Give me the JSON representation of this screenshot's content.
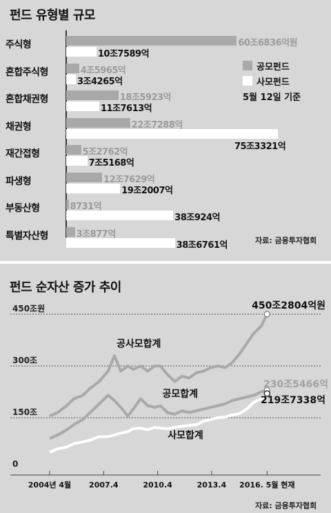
{
  "chart_data": [
    {
      "type": "bar",
      "title": "펀드 유형별 규모",
      "categories": [
        "주식형",
        "혼합주식형",
        "혼합채권형",
        "채권형",
        "재간접형",
        "파생형",
        "부동산형",
        "특별자산형"
      ],
      "series": [
        {
          "name": "공모펀드",
          "color": "#a9a9a9",
          "values": [
            60.6836,
            4.5965,
            18.5923,
            22.7288,
            5.2762,
            12.7629,
            0.8731,
            3.0877
          ],
          "labels": [
            "60조6836억원",
            "4조5965억",
            "18조5923억",
            "22조7288억",
            "5조2762억",
            "12조7629억",
            "8731억",
            "3조877억"
          ]
        },
        {
          "name": "사모펀드",
          "color": "#ffffff",
          "values": [
            10.7589,
            3.4265,
            11.7613,
            75.3321,
            7.5168,
            19.2007,
            38.0924,
            38.6761
          ],
          "labels": [
            "10조7589억",
            "3조4265억",
            "11조7613억",
            "75조3321억",
            "7조5168억",
            "19조2007억",
            "38조924억",
            "38조6761억"
          ]
        }
      ],
      "xlim": [
        0,
        78
      ],
      "legend_note": "5월 12일 기준",
      "source": "자료: 금융투자협회"
    },
    {
      "type": "line",
      "title": "펀드 순자산 증가 추이",
      "y_tick_labels": [
        "0",
        "150조",
        "300조",
        "450조원"
      ],
      "y_ticks": [
        0,
        150,
        300,
        450
      ],
      "ylim": [
        0,
        480
      ],
      "x_tick_labels": [
        "2004년 4월",
        "2007.4",
        "2010.4",
        "2013.4",
        "2016. 5월 현재"
      ],
      "x_ticks": [
        2004.25,
        2007.25,
        2010.25,
        2013.25,
        2016.33
      ],
      "xlim": [
        2003.6,
        2017.2
      ],
      "series": [
        {
          "name": "공사모합계",
          "color": "#a9a9a9",
          "end_label": "450조2804억원",
          "x": [
            2004.25,
            2004.7,
            2005.2,
            2005.6,
            2006.1,
            2006.5,
            2007.0,
            2007.5,
            2007.85,
            2008.2,
            2008.6,
            2008.9,
            2009.3,
            2009.7,
            2010.1,
            2010.4,
            2010.8,
            2011.2,
            2011.6,
            2012.0,
            2012.4,
            2012.8,
            2013.2,
            2013.6,
            2014.0,
            2014.4,
            2014.8,
            2015.2,
            2015.6,
            2016.0,
            2016.33
          ],
          "y": [
            155,
            165,
            185,
            205,
            215,
            235,
            255,
            285,
            330,
            285,
            300,
            290,
            300,
            285,
            300,
            300,
            275,
            255,
            270,
            265,
            280,
            285,
            295,
            300,
            295,
            310,
            335,
            365,
            395,
            415,
            450
          ]
        },
        {
          "name": "공모합계",
          "color": "#a9a9a9",
          "end_label": "230조5466억",
          "x": [
            2004.25,
            2004.7,
            2005.2,
            2005.6,
            2006.1,
            2006.5,
            2007.0,
            2007.5,
            2007.85,
            2008.2,
            2008.6,
            2008.9,
            2009.3,
            2009.7,
            2010.1,
            2010.4,
            2010.8,
            2011.2,
            2011.6,
            2012.0,
            2012.4,
            2012.8,
            2013.2,
            2013.6,
            2014.0,
            2014.4,
            2014.8,
            2015.2,
            2015.6,
            2016.0,
            2016.33
          ],
          "y": [
            90,
            100,
            115,
            130,
            145,
            165,
            190,
            215,
            200,
            180,
            155,
            175,
            205,
            185,
            180,
            185,
            165,
            160,
            170,
            165,
            170,
            175,
            180,
            185,
            190,
            200,
            205,
            210,
            215,
            225,
            230
          ]
        },
        {
          "name": "사모합계",
          "color": "#ffffff",
          "end_label": "219조7338억",
          "x": [
            2004.25,
            2004.7,
            2005.2,
            2005.6,
            2006.1,
            2006.5,
            2007.0,
            2007.5,
            2007.85,
            2008.2,
            2008.6,
            2008.9,
            2009.3,
            2009.7,
            2010.1,
            2010.4,
            2010.8,
            2011.2,
            2011.6,
            2012.0,
            2012.4,
            2012.8,
            2013.2,
            2013.6,
            2014.0,
            2014.4,
            2014.8,
            2015.2,
            2015.6,
            2016.0,
            2016.33
          ],
          "y": [
            50,
            60,
            65,
            75,
            80,
            85,
            95,
            95,
            100,
            105,
            110,
            118,
            120,
            115,
            122,
            120,
            118,
            122,
            125,
            128,
            130,
            140,
            145,
            150,
            152,
            158,
            162,
            175,
            195,
            205,
            220
          ]
        }
      ],
      "source": "자료: 금융투자협회"
    }
  ]
}
